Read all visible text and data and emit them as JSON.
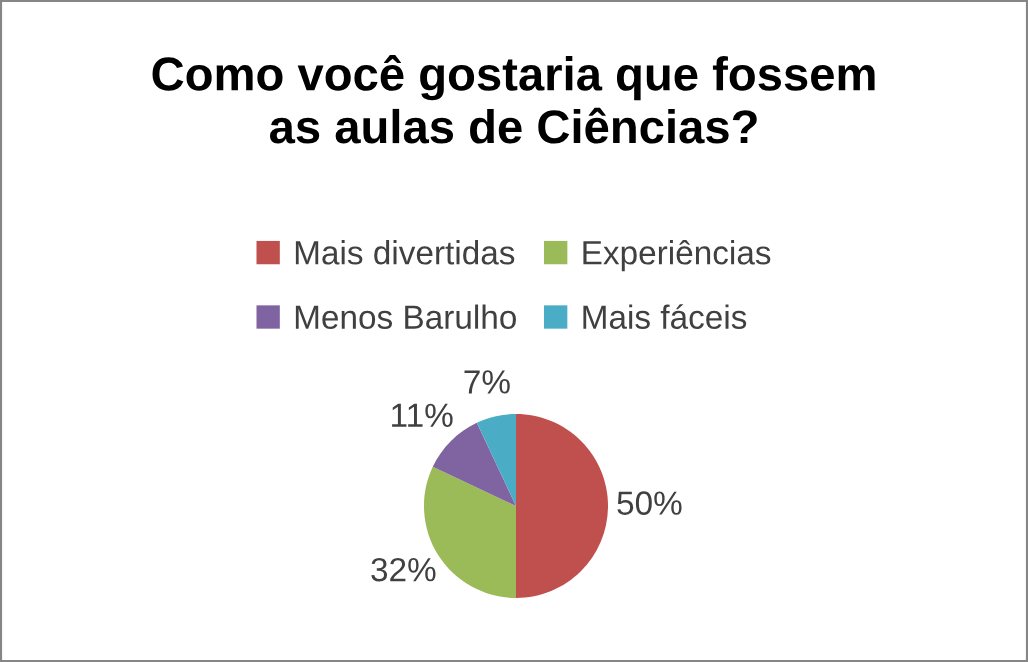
{
  "chart_data": {
    "type": "pie",
    "title": "Como você gostaria que fossem\nas aulas de Ciências?",
    "categories": [
      "Mais divertidas",
      "Experiências",
      "Menos Barulho",
      "Mais fáceis"
    ],
    "values": [
      50,
      32,
      11,
      7
    ],
    "value_labels": [
      "50%",
      "32%",
      "11%",
      "7%"
    ],
    "colors": [
      "#c0504d",
      "#9bbb59",
      "#8064a2",
      "#4bacc6"
    ],
    "legend": "top"
  }
}
